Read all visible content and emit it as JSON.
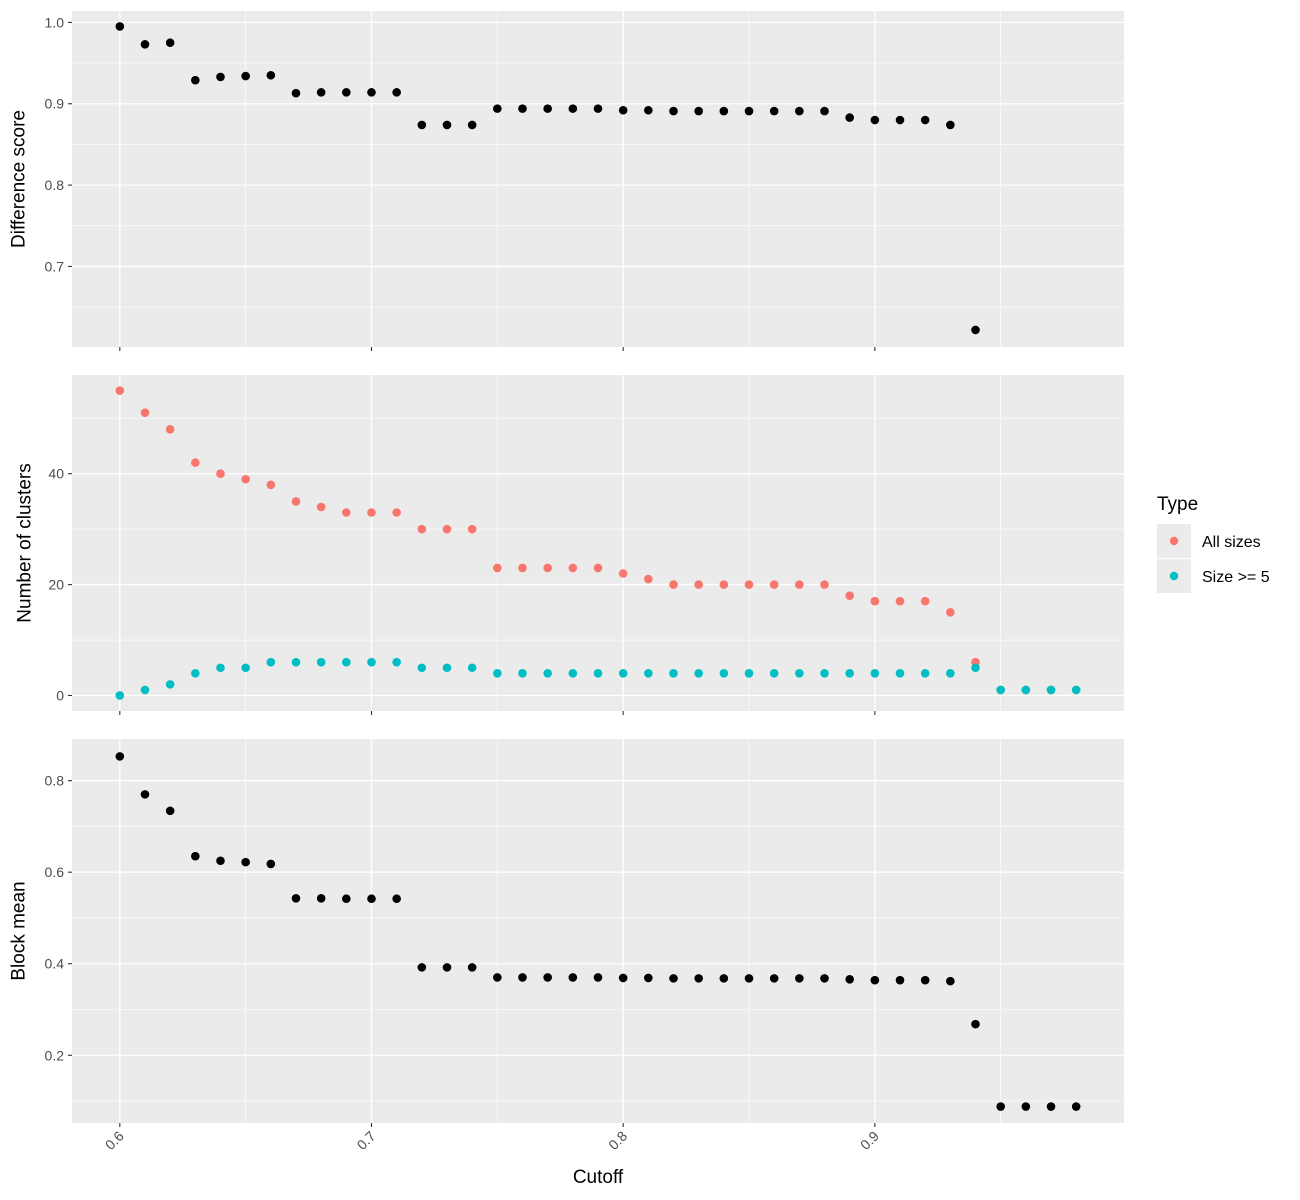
{
  "chart_data": {
    "type": "scatter",
    "shared_x": {
      "label": "Cutoff",
      "xlim": [
        0.581,
        0.999
      ],
      "ticks": [
        0.6,
        0.7,
        0.8,
        0.9
      ],
      "tick_labels": [
        "0.6",
        "0.7",
        "0.8",
        "0.9"
      ]
    },
    "panels": [
      {
        "ylabel": "Difference score",
        "ylim": [
          0.601,
          1.014
        ],
        "ticks": [
          0.7,
          0.8,
          0.9,
          1.0
        ],
        "tick_labels": [
          "0.7",
          "0.8",
          "0.9",
          "1.0"
        ],
        "series": [
          {
            "color": "#000000",
            "x": [
              0.6,
              0.61,
              0.62,
              0.63,
              0.64,
              0.65,
              0.66,
              0.67,
              0.68,
              0.69,
              0.7,
              0.71,
              0.72,
              0.73,
              0.74,
              0.75,
              0.76,
              0.77,
              0.78,
              0.79,
              0.8,
              0.81,
              0.82,
              0.83,
              0.84,
              0.85,
              0.86,
              0.87,
              0.88,
              0.89,
              0.9,
              0.91,
              0.92,
              0.93,
              0.94
            ],
            "y": [
              0.995,
              0.973,
              0.975,
              0.929,
              0.933,
              0.934,
              0.935,
              0.913,
              0.914,
              0.914,
              0.914,
              0.914,
              0.874,
              0.874,
              0.874,
              0.894,
              0.894,
              0.894,
              0.894,
              0.894,
              0.892,
              0.892,
              0.891,
              0.891,
              0.891,
              0.891,
              0.891,
              0.891,
              0.891,
              0.883,
              0.88,
              0.88,
              0.88,
              0.874,
              0.622
            ]
          }
        ]
      },
      {
        "ylabel": "Number of clusters",
        "ylim": [
          -2.8,
          57.8
        ],
        "ticks": [
          0,
          20,
          40
        ],
        "tick_labels": [
          "0",
          "20",
          "40"
        ],
        "series": [
          {
            "name": "All sizes",
            "color": "#F8766D",
            "x": [
              0.6,
              0.61,
              0.62,
              0.63,
              0.64,
              0.65,
              0.66,
              0.67,
              0.68,
              0.69,
              0.7,
              0.71,
              0.72,
              0.73,
              0.74,
              0.75,
              0.76,
              0.77,
              0.78,
              0.79,
              0.8,
              0.81,
              0.82,
              0.83,
              0.84,
              0.85,
              0.86,
              0.87,
              0.88,
              0.89,
              0.9,
              0.91,
              0.92,
              0.93,
              0.94,
              0.95,
              0.96,
              0.97,
              0.98
            ],
            "y": [
              55,
              51,
              48,
              42,
              40,
              39,
              38,
              35,
              34,
              33,
              33,
              33,
              30,
              30,
              30,
              23,
              23,
              23,
              23,
              23,
              22,
              21,
              20,
              20,
              20,
              20,
              20,
              20,
              20,
              18,
              17,
              17,
              17,
              15,
              6,
              1,
              1,
              1,
              1
            ]
          },
          {
            "name": "Size >= 5",
            "color": "#00BFC4",
            "x": [
              0.6,
              0.61,
              0.62,
              0.63,
              0.64,
              0.65,
              0.66,
              0.67,
              0.68,
              0.69,
              0.7,
              0.71,
              0.72,
              0.73,
              0.74,
              0.75,
              0.76,
              0.77,
              0.78,
              0.79,
              0.8,
              0.81,
              0.82,
              0.83,
              0.84,
              0.85,
              0.86,
              0.87,
              0.88,
              0.89,
              0.9,
              0.91,
              0.92,
              0.93,
              0.94,
              0.95,
              0.96,
              0.97,
              0.98
            ],
            "y": [
              0,
              1,
              2,
              4,
              5,
              5,
              6,
              6,
              6,
              6,
              6,
              6,
              5,
              5,
              5,
              4,
              4,
              4,
              4,
              4,
              4,
              4,
              4,
              4,
              4,
              4,
              4,
              4,
              4,
              4,
              4,
              4,
              4,
              4,
              5,
              1,
              1,
              1,
              1
            ]
          }
        ]
      },
      {
        "ylabel": "Block mean",
        "ylim": [
          0.052,
          0.891
        ],
        "ticks": [
          0.2,
          0.4,
          0.6,
          0.8
        ],
        "tick_labels": [
          "0.2",
          "0.4",
          "0.6",
          "0.8"
        ],
        "series": [
          {
            "color": "#000000",
            "x": [
              0.6,
              0.61,
              0.62,
              0.63,
              0.64,
              0.65,
              0.66,
              0.67,
              0.68,
              0.69,
              0.7,
              0.71,
              0.72,
              0.73,
              0.74,
              0.75,
              0.76,
              0.77,
              0.78,
              0.79,
              0.8,
              0.81,
              0.82,
              0.83,
              0.84,
              0.85,
              0.86,
              0.87,
              0.88,
              0.89,
              0.9,
              0.91,
              0.92,
              0.93,
              0.94,
              0.95,
              0.96,
              0.97,
              0.98
            ],
            "y": [
              0.853,
              0.77,
              0.734,
              0.635,
              0.625,
              0.622,
              0.618,
              0.543,
              0.543,
              0.542,
              0.542,
              0.542,
              0.392,
              0.392,
              0.392,
              0.37,
              0.37,
              0.37,
              0.37,
              0.37,
              0.369,
              0.369,
              0.368,
              0.368,
              0.368,
              0.368,
              0.368,
              0.368,
              0.368,
              0.366,
              0.364,
              0.364,
              0.364,
              0.362,
              0.268,
              0.088,
              0.088,
              0.088,
              0.088
            ]
          }
        ]
      }
    ],
    "legend": {
      "title": "Type",
      "placement": "right",
      "entries": [
        {
          "label": "All sizes",
          "color": "#F8766D"
        },
        {
          "label": "Size >= 5",
          "color": "#00BFC4"
        }
      ]
    },
    "grid": true
  }
}
